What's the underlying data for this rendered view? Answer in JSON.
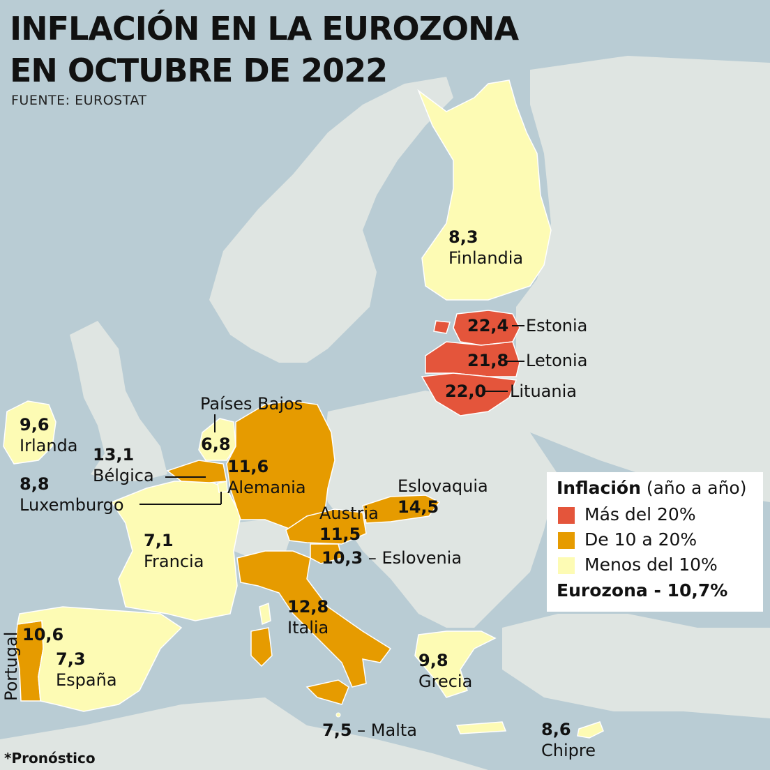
{
  "title_line1": "INFLACIÓN EN LA EUROZONA",
  "title_line2": "EN OCTUBRE DE 2022",
  "source": "FUENTE: EUROSTAT",
  "colors": {
    "sea": "#b9ccd4",
    "other_land": "#dfe5e2",
    "above_20": "#e4553b",
    "from_10_to_20": "#e69b00",
    "below_10": "#fdfbb4"
  },
  "countries": [
    {
      "name": "Finlandia",
      "value": "8,3",
      "category": "below_10"
    },
    {
      "name": "Estonia",
      "value": "22,4",
      "category": "above_20"
    },
    {
      "name": "Letonia",
      "value": "21,8",
      "category": "above_20"
    },
    {
      "name": "Lituania",
      "value": "22,0",
      "category": "above_20"
    },
    {
      "name": "Irlanda",
      "value": "9,6",
      "category": "below_10"
    },
    {
      "name": "Países Bajos",
      "value": "6,8",
      "category": "below_10"
    },
    {
      "name": "Bélgica",
      "value": "13,1",
      "category": "from_10_to_20"
    },
    {
      "name": "Luxemburgo",
      "value": "8,8",
      "category": "below_10"
    },
    {
      "name": "Alemania",
      "value": "11,6",
      "category": "from_10_to_20"
    },
    {
      "name": "Eslovaquia",
      "value": "14,5",
      "category": "from_10_to_20"
    },
    {
      "name": "Austria",
      "value": "11,5",
      "category": "from_10_to_20"
    },
    {
      "name": "Eslovenia",
      "value": "10,3",
      "category": "from_10_to_20"
    },
    {
      "name": "Francia",
      "value": "7,1",
      "category": "below_10"
    },
    {
      "name": "Italia",
      "value": "12,8",
      "category": "from_10_to_20"
    },
    {
      "name": "Portugal",
      "value": "10,6",
      "category": "from_10_to_20"
    },
    {
      "name": "España",
      "value": "7,3",
      "category": "below_10"
    },
    {
      "name": "Grecia",
      "value": "9,8",
      "category": "below_10"
    },
    {
      "name": "Malta",
      "value": "7,5",
      "category": "below_10"
    },
    {
      "name": "Chipre",
      "value": "8,6",
      "category": "below_10"
    }
  ],
  "legend": {
    "title_bold": "Inflación",
    "title_rest": " (año a año)",
    "items": [
      {
        "label": "Más del 20%",
        "color": "#e4553b"
      },
      {
        "label": "De 10 a 20%",
        "color": "#e69b00"
      },
      {
        "label": "Menos del 10%",
        "color": "#fdfbb4"
      }
    ],
    "total": "Eurozona - 10,7%"
  },
  "eslovenia_sep": " – ",
  "malta_sep": " – ",
  "footnote": "*Pronóstico"
}
